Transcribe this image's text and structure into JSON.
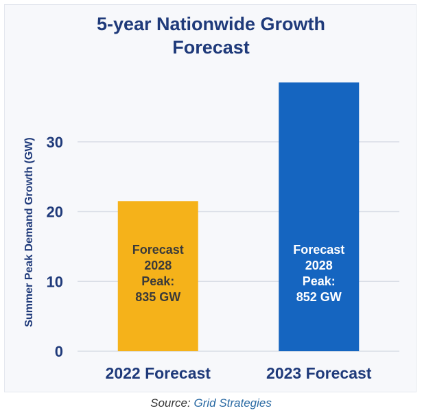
{
  "title_lines": [
    "5-year Nationwide Growth",
    "Forecast"
  ],
  "source": {
    "prefix": "Source:",
    "link": "Grid Strategies"
  },
  "chart_data": {
    "type": "bar",
    "title": "5-year Nationwide Growth Forecast",
    "categories": [
      "2022 Forecast",
      "2023 Forecast"
    ],
    "values": [
      21.5,
      38.5
    ],
    "bar_labels": [
      [
        "Forecast",
        "2028",
        "Peak:",
        "835 GW"
      ],
      [
        "Forecast",
        "2028",
        "Peak:",
        "852 GW"
      ]
    ],
    "colors": [
      "#f5b21a",
      "#1565c0"
    ],
    "bar_label_colors": [
      "#3a3a3a",
      "#ffffff"
    ],
    "xlabel": "",
    "ylabel": "Summer Peak Demand Growth (GW)",
    "ylim": [
      0,
      40
    ],
    "yticks": [
      0,
      10,
      20,
      30
    ],
    "grid": true,
    "axis_color": "#1f3a7a",
    "grid_color": "#d9dde6"
  }
}
